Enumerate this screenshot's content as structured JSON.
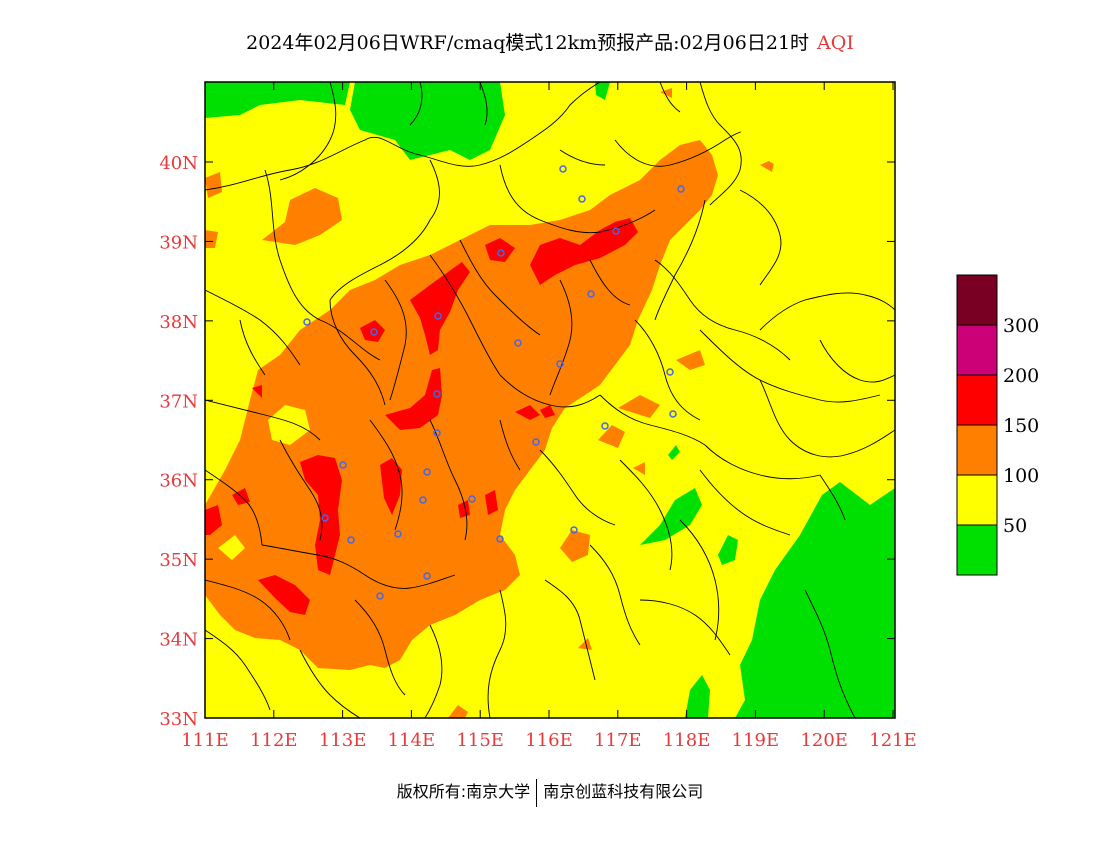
{
  "title": {
    "main": "2024年02月06日WRF/cmaq模式12km预报产品:02月06日21时",
    "variable": "AQI"
  },
  "axes": {
    "lon_ticks": [
      "111E",
      "112E",
      "113E",
      "114E",
      "115E",
      "116E",
      "117E",
      "118E",
      "119E",
      "120E",
      "121E"
    ],
    "lat_ticks": [
      "40N",
      "39N",
      "38N",
      "37N",
      "36N",
      "35N",
      "34N",
      "33N"
    ],
    "label_color": "#e8393b"
  },
  "legend": {
    "labels": [
      "300",
      "200",
      "150",
      "100",
      "50"
    ],
    "colors": {
      "level_0_50": "#00e000",
      "level_50_100": "#ffff00",
      "level_100_150": "#ff8000",
      "level_150_200": "#ff0000",
      "level_200_300": "#cc0077",
      "level_300_plus": "#7a0023"
    }
  },
  "footer": {
    "left": "版权所有:南京大学",
    "right": "南京创蓝科技有限公司"
  }
}
